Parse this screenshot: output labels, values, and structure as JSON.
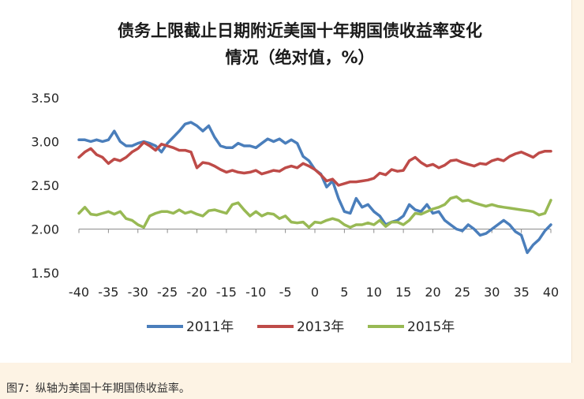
{
  "caption": "图7：纵轴为美国十年期国债收益率。",
  "chart_data": {
    "type": "line",
    "title_line1": "债务上限截止日期附近美国十年期国债收益率变化",
    "title_line2": "情况（绝对值，%）",
    "xlabel": "",
    "ylabel": "",
    "xlim": [
      -40,
      40
    ],
    "ylim": [
      1.5,
      3.5
    ],
    "x_ticks": [
      "-40",
      "-35",
      "-30",
      "-25",
      "-20",
      "-15",
      "-10",
      "-5",
      "0",
      "5",
      "10",
      "15",
      "20",
      "25",
      "30",
      "35",
      "40"
    ],
    "y_ticks": [
      "3.50",
      "3.00",
      "2.50",
      "2.00",
      "1.50"
    ],
    "grid": false,
    "legend_position": "bottom",
    "series": [
      {
        "name": "2011年",
        "color": "#4a7ebb",
        "x": [
          -40,
          -39,
          -38,
          -37,
          -36,
          -35,
          -34,
          -33,
          -32,
          -31,
          -30,
          -29,
          -28,
          -27,
          -26,
          -25,
          -24,
          -23,
          -22,
          -21,
          -20,
          -19,
          -18,
          -17,
          -16,
          -15,
          -14,
          -13,
          -12,
          -11,
          -10,
          -9,
          -8,
          -7,
          -6,
          -5,
          -4,
          -3,
          -2,
          -1,
          0,
          1,
          2,
          3,
          4,
          5,
          6,
          7,
          8,
          9,
          10,
          11,
          12,
          13,
          14,
          15,
          16,
          17,
          18,
          19,
          20,
          21,
          22,
          23,
          24,
          25,
          26,
          27,
          28,
          29,
          30,
          31,
          32,
          33,
          34,
          35,
          36,
          37,
          38,
          39,
          40
        ],
        "values": [
          3.02,
          3.02,
          3.0,
          3.02,
          3.0,
          3.02,
          3.12,
          3.0,
          2.95,
          2.95,
          2.98,
          3.0,
          2.98,
          2.95,
          2.88,
          2.98,
          3.05,
          3.12,
          3.2,
          3.22,
          3.18,
          3.12,
          3.18,
          3.05,
          2.95,
          2.93,
          2.93,
          2.98,
          2.95,
          2.95,
          2.93,
          2.98,
          3.03,
          3.0,
          3.03,
          2.98,
          3.02,
          2.98,
          2.83,
          2.78,
          2.68,
          2.63,
          2.48,
          2.55,
          2.35,
          2.2,
          2.18,
          2.35,
          2.25,
          2.28,
          2.2,
          2.15,
          2.05,
          2.08,
          2.1,
          2.15,
          2.28,
          2.22,
          2.2,
          2.28,
          2.18,
          2.2,
          2.1,
          2.05,
          2.0,
          1.98,
          2.05,
          2.0,
          1.93,
          1.95,
          2.0,
          2.05,
          2.1,
          2.05,
          1.97,
          1.93,
          1.73,
          1.82,
          1.88,
          1.98,
          2.05
        ]
      },
      {
        "name": "2013年",
        "color": "#be4b48",
        "x": [
          -40,
          -39,
          -38,
          -37,
          -36,
          -35,
          -34,
          -33,
          -32,
          -31,
          -30,
          -29,
          -28,
          -27,
          -26,
          -25,
          -24,
          -23,
          -22,
          -21,
          -20,
          -19,
          -18,
          -17,
          -16,
          -15,
          -14,
          -13,
          -12,
          -11,
          -10,
          -9,
          -8,
          -7,
          -6,
          -5,
          -4,
          -3,
          -2,
          -1,
          0,
          1,
          2,
          3,
          4,
          5,
          6,
          7,
          8,
          9,
          10,
          11,
          12,
          13,
          14,
          15,
          16,
          17,
          18,
          19,
          20,
          21,
          22,
          23,
          24,
          25,
          26,
          27,
          28,
          29,
          30,
          31,
          32,
          33,
          34,
          35,
          36,
          37,
          38,
          39,
          40
        ],
        "values": [
          2.82,
          2.88,
          2.92,
          2.85,
          2.82,
          2.75,
          2.8,
          2.78,
          2.82,
          2.88,
          2.92,
          2.99,
          2.95,
          2.9,
          2.97,
          2.95,
          2.93,
          2.9,
          2.9,
          2.88,
          2.7,
          2.76,
          2.75,
          2.72,
          2.68,
          2.65,
          2.67,
          2.65,
          2.64,
          2.65,
          2.67,
          2.63,
          2.65,
          2.67,
          2.66,
          2.7,
          2.72,
          2.7,
          2.75,
          2.72,
          2.68,
          2.62,
          2.55,
          2.57,
          2.5,
          2.52,
          2.54,
          2.54,
          2.55,
          2.56,
          2.58,
          2.64,
          2.62,
          2.68,
          2.66,
          2.67,
          2.78,
          2.82,
          2.76,
          2.72,
          2.74,
          2.7,
          2.73,
          2.78,
          2.79,
          2.76,
          2.74,
          2.72,
          2.75,
          2.74,
          2.78,
          2.8,
          2.78,
          2.83,
          2.86,
          2.88,
          2.85,
          2.82,
          2.87,
          2.89,
          2.89
        ]
      },
      {
        "name": "2015年",
        "color": "#98b954",
        "x": [
          -40,
          -39,
          -38,
          -37,
          -36,
          -35,
          -34,
          -33,
          -32,
          -31,
          -30,
          -29,
          -28,
          -27,
          -26,
          -25,
          -24,
          -23,
          -22,
          -21,
          -20,
          -19,
          -18,
          -17,
          -16,
          -15,
          -14,
          -13,
          -12,
          -11,
          -10,
          -9,
          -8,
          -7,
          -6,
          -5,
          -4,
          -3,
          -2,
          -1,
          0,
          1,
          2,
          3,
          4,
          5,
          6,
          7,
          8,
          9,
          10,
          11,
          12,
          13,
          14,
          15,
          16,
          17,
          18,
          19,
          20,
          21,
          22,
          23,
          24,
          25,
          26,
          27,
          28,
          29,
          30,
          31,
          32,
          33,
          34,
          35,
          36,
          37,
          38,
          39,
          40
        ],
        "values": [
          2.18,
          2.25,
          2.17,
          2.16,
          2.18,
          2.2,
          2.17,
          2.2,
          2.12,
          2.1,
          2.05,
          2.02,
          2.15,
          2.18,
          2.2,
          2.2,
          2.18,
          2.22,
          2.18,
          2.2,
          2.17,
          2.15,
          2.21,
          2.22,
          2.2,
          2.18,
          2.28,
          2.3,
          2.22,
          2.15,
          2.2,
          2.15,
          2.18,
          2.17,
          2.12,
          2.15,
          2.08,
          2.07,
          2.08,
          2.02,
          2.08,
          2.07,
          2.1,
          2.12,
          2.1,
          2.05,
          2.02,
          2.05,
          2.05,
          2.07,
          2.05,
          2.1,
          2.03,
          2.08,
          2.08,
          2.05,
          2.1,
          2.18,
          2.17,
          2.2,
          2.23,
          2.25,
          2.28,
          2.35,
          2.37,
          2.32,
          2.33,
          2.3,
          2.28,
          2.26,
          2.28,
          2.26,
          2.25,
          2.24,
          2.23,
          2.22,
          2.21,
          2.2,
          2.16,
          2.18,
          2.33
        ]
      }
    ]
  }
}
